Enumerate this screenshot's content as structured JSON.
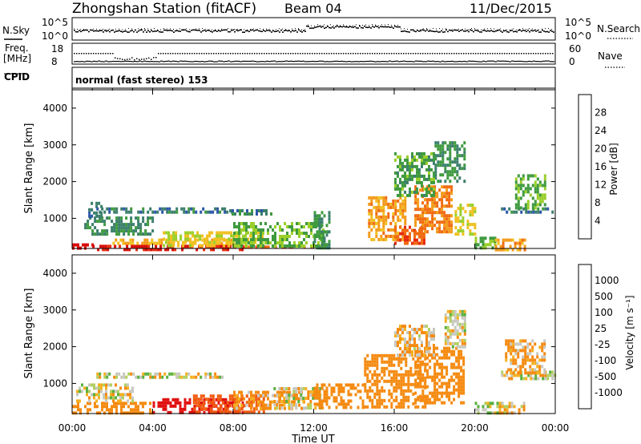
{
  "header": {
    "title": "Zhongshan Station (fitACF)",
    "beam": "Beam 04",
    "date": "11/Dec/2015"
  },
  "summary": {
    "nsky_label": "N.Sky",
    "nsearch_label": "N.Search",
    "noise_ticks": [
      "10^5",
      "10^0"
    ],
    "freq_label": "Freq.",
    "freq_unit": "[MHz]",
    "freq_ticks": [
      "18",
      "8"
    ],
    "nave_label": "Nave",
    "nave_ticks": [
      "60",
      "0"
    ],
    "cpid_label": "CPID",
    "cpid_text": "normal (fast stereo) 153"
  },
  "x_axis": {
    "label": "Time UT",
    "ticks": [
      "00:00",
      "04:00",
      "08:00",
      "12:00",
      "16:00",
      "20:00",
      "00:00"
    ]
  },
  "y_axis": {
    "label": "Slant Range [km]",
    "ticks": [
      "1000",
      "2000",
      "3000",
      "4000"
    ]
  },
  "colors": {
    "power": [
      "#0a1ee6",
      "#2d57a8",
      "#3b7f6c",
      "#3f9a3f",
      "#9bcf2a",
      "#f0c020",
      "#f39a18",
      "#f06a10",
      "#e82a0e",
      "#d80a06"
    ],
    "velocity": [
      "#e01010",
      "#f05a10",
      "#f58a10",
      "#f5b020",
      "#c8c8c0",
      "#b0d060",
      "#5ab040",
      "#2e7a4a",
      "#2a4fa8",
      "#1028d0"
    ]
  },
  "chart_data": [
    {
      "type": "heatmap",
      "name": "power",
      "colorbar_label": "Power [dB]",
      "colorbar_ticks": [
        "4",
        "8",
        "12",
        "16",
        "20",
        "24",
        "28"
      ],
      "xlim": [
        0,
        24
      ],
      "ylim": [
        180,
        4500
      ],
      "regions": [
        {
          "t": [
            0.0,
            1.0
          ],
          "r": [
            180,
            320
          ],
          "v": 28
        },
        {
          "t": [
            1.0,
            8.5
          ],
          "r": [
            180,
            280
          ],
          "v": 26
        },
        {
          "t": [
            8.5,
            12.5
          ],
          "r": [
            180,
            260
          ],
          "v": 22
        },
        {
          "t": [
            2.0,
            8.0
          ],
          "r": [
            280,
            450
          ],
          "v": 16
        },
        {
          "t": [
            4.5,
            9.5
          ],
          "r": [
            300,
            650
          ],
          "v": 14
        },
        {
          "t": [
            0.6,
            4.0
          ],
          "r": [
            600,
            1050
          ],
          "v": 7
        },
        {
          "t": [
            0.8,
            1.5
          ],
          "r": [
            1100,
            1450
          ],
          "v": 5
        },
        {
          "t": [
            1.2,
            8.0
          ],
          "r": [
            1180,
            1300
          ],
          "v": 6
        },
        {
          "t": [
            7.8,
            10.0
          ],
          "r": [
            1150,
            1250
          ],
          "v": 6
        },
        {
          "t": [
            8.0,
            12.5
          ],
          "r": [
            280,
            900
          ],
          "v": 10
        },
        {
          "t": [
            12.0,
            12.8
          ],
          "r": [
            180,
            1200
          ],
          "v": 8
        },
        {
          "t": [
            14.7,
            16.5
          ],
          "r": [
            400,
            1600
          ],
          "v": 18
        },
        {
          "t": [
            16.0,
            17.5
          ],
          "r": [
            350,
            800
          ],
          "v": 22
        },
        {
          "t": [
            17.0,
            18.8
          ],
          "r": [
            600,
            1900
          ],
          "v": 20
        },
        {
          "t": [
            18.0,
            19.5
          ],
          "r": [
            2000,
            3100
          ],
          "v": 8
        },
        {
          "t": [
            19.0,
            20.0
          ],
          "r": [
            600,
            1400
          ],
          "v": 14
        },
        {
          "t": [
            16.0,
            18.0
          ],
          "r": [
            1600,
            2800
          ],
          "v": 9
        },
        {
          "t": [
            20.0,
            21.0
          ],
          "r": [
            180,
            500
          ],
          "v": 10
        },
        {
          "t": [
            21.3,
            24.0
          ],
          "r": [
            1150,
            1300
          ],
          "v": 6
        },
        {
          "t": [
            22.0,
            23.5
          ],
          "r": [
            1300,
            2200
          ],
          "v": 10
        },
        {
          "t": [
            21.0,
            22.5
          ],
          "r": [
            180,
            450
          ],
          "v": 18
        }
      ]
    },
    {
      "type": "heatmap",
      "name": "velocity",
      "colorbar_label": "Velocity [m s⁻¹]",
      "colorbar_ticks": [
        "-1000",
        "-500",
        "-100",
        "-25",
        "25",
        "100",
        "500",
        "1000"
      ],
      "xlim": [
        0,
        24
      ],
      "ylim": [
        180,
        4500
      ],
      "regions": [
        {
          "t": [
            0.0,
            4.0
          ],
          "r": [
            180,
            500
          ],
          "v": -180
        },
        {
          "t": [
            0.2,
            3.0
          ],
          "r": [
            550,
            1000
          ],
          "v": 0
        },
        {
          "t": [
            1.2,
            7.5
          ],
          "r": [
            1150,
            1300
          ],
          "v": 0
        },
        {
          "t": [
            4.0,
            8.5
          ],
          "r": [
            180,
            600
          ],
          "v": -900
        },
        {
          "t": [
            6.0,
            9.5
          ],
          "r": [
            250,
            700
          ],
          "v": -450
        },
        {
          "t": [
            8.0,
            11.5
          ],
          "r": [
            300,
            800
          ],
          "v": -100
        },
        {
          "t": [
            10.0,
            12.5
          ],
          "r": [
            300,
            900
          ],
          "v": 0
        },
        {
          "t": [
            12.0,
            14.5
          ],
          "r": [
            350,
            1000
          ],
          "v": -200
        },
        {
          "t": [
            14.5,
            17.5
          ],
          "r": [
            350,
            1800
          ],
          "v": -180
        },
        {
          "t": [
            17.0,
            19.5
          ],
          "r": [
            500,
            2000
          ],
          "v": -200
        },
        {
          "t": [
            18.5,
            19.5
          ],
          "r": [
            2000,
            3000
          ],
          "v": 0
        },
        {
          "t": [
            16.0,
            18.0
          ],
          "r": [
            1800,
            2600
          ],
          "v": -60
        },
        {
          "t": [
            20.0,
            21.5
          ],
          "r": [
            180,
            500
          ],
          "v": 30
        },
        {
          "t": [
            21.3,
            24.0
          ],
          "r": [
            1100,
            1350
          ],
          "v": 0
        },
        {
          "t": [
            21.5,
            23.5
          ],
          "r": [
            1300,
            2200
          ],
          "v": -80
        },
        {
          "t": [
            21.2,
            22.5
          ],
          "r": [
            180,
            500
          ],
          "v": -60
        }
      ]
    }
  ]
}
